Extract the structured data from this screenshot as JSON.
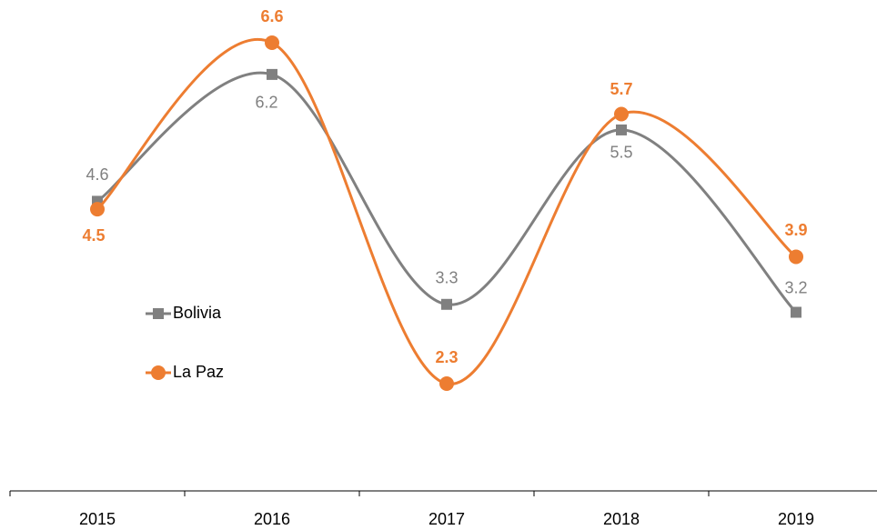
{
  "chart_data": {
    "type": "line",
    "categories": [
      "2015",
      "2016",
      "2017",
      "2018",
      "2019"
    ],
    "series": [
      {
        "name": "Bolivia",
        "color": "#808080",
        "values": [
          4.6,
          6.2,
          3.3,
          5.5,
          3.2
        ]
      },
      {
        "name": "La Paz",
        "color": "#ed7d31",
        "values": [
          4.5,
          6.6,
          2.3,
          5.7,
          3.9
        ]
      }
    ]
  }
}
